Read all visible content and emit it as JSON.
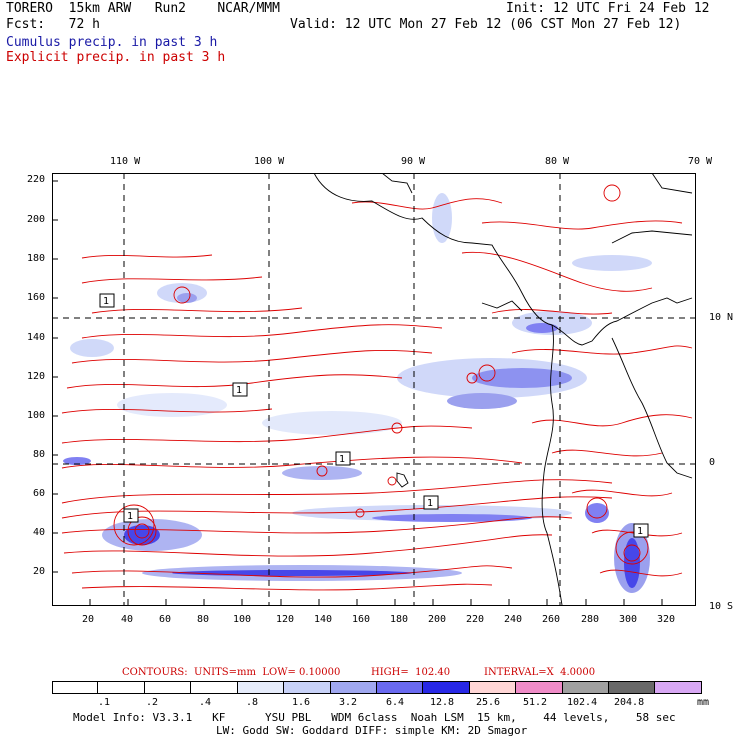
{
  "header": {
    "model_line": "TORERO  15km ARW   Run2    NCAR/MMM",
    "init_line": "Init: 12 UTC Fri 24 Feb 12",
    "fcst_line": "Fcst:   72 h",
    "valid_line": "Valid: 12 UTC Mon 27 Feb 12 (06 CST Mon 27 Feb 12)",
    "cumulus_line": "Cumulus precip. in past 3 h",
    "explicit_line": "Explicit precip. in past 3 h"
  },
  "map": {
    "top_lon_labels": [
      "110 W",
      "100 W",
      "90 W",
      "80 W",
      "70 W"
    ],
    "right_lat_labels": [
      "10 N",
      "0",
      "10 S"
    ],
    "y_ticks": [
      "220",
      "200",
      "180",
      "160",
      "140",
      "120",
      "100",
      "80",
      "60",
      "40",
      "20"
    ],
    "x_ticks": [
      "20",
      "40",
      "60",
      "80",
      "100",
      "120",
      "140",
      "160",
      "180",
      "200",
      "220",
      "240",
      "260",
      "280",
      "300",
      "320"
    ],
    "contour_markers": [
      "1",
      "1",
      "1",
      "1",
      "1",
      "1"
    ],
    "x_range": [
      0,
      330
    ],
    "y_range": [
      0,
      225
    ],
    "land_color": "#000000",
    "explicit_color": "#dd0000",
    "cumulus_color": "#4848e0"
  },
  "contours_line": {
    "prefix": "CONTOURS:  UNITS=mm  LOW= 0.10000",
    "high": "HIGH=  102.40",
    "interval": "INTERVAL=X  4.0000"
  },
  "colorbar": {
    "colors": [
      "#ffffff",
      "#ffffff",
      "#ffffff",
      "#ffffff",
      "#e6ecfb",
      "#c8d2f8",
      "#a0a8f0",
      "#6a6af0",
      "#2828e6",
      "#ffd6d6",
      "#f08cc8",
      "#a0a0a0",
      "#686868",
      "#d8a8f4"
    ],
    "labels": [
      ".1",
      ".2",
      ".4",
      ".8",
      "1.6",
      "3.2",
      "6.4",
      "12.8",
      "25.6",
      "51.2",
      "102.4",
      "204.8"
    ],
    "unit": "mm"
  },
  "model_info": {
    "line1": "Model Info: V3.3.1   KF      YSU PBL   WDM 6class  Noah LSM  15 km,    44 levels,    58 sec",
    "line2": "LW: Godd SW: Goddard DIFF: simple KM: 2D Smagor"
  }
}
